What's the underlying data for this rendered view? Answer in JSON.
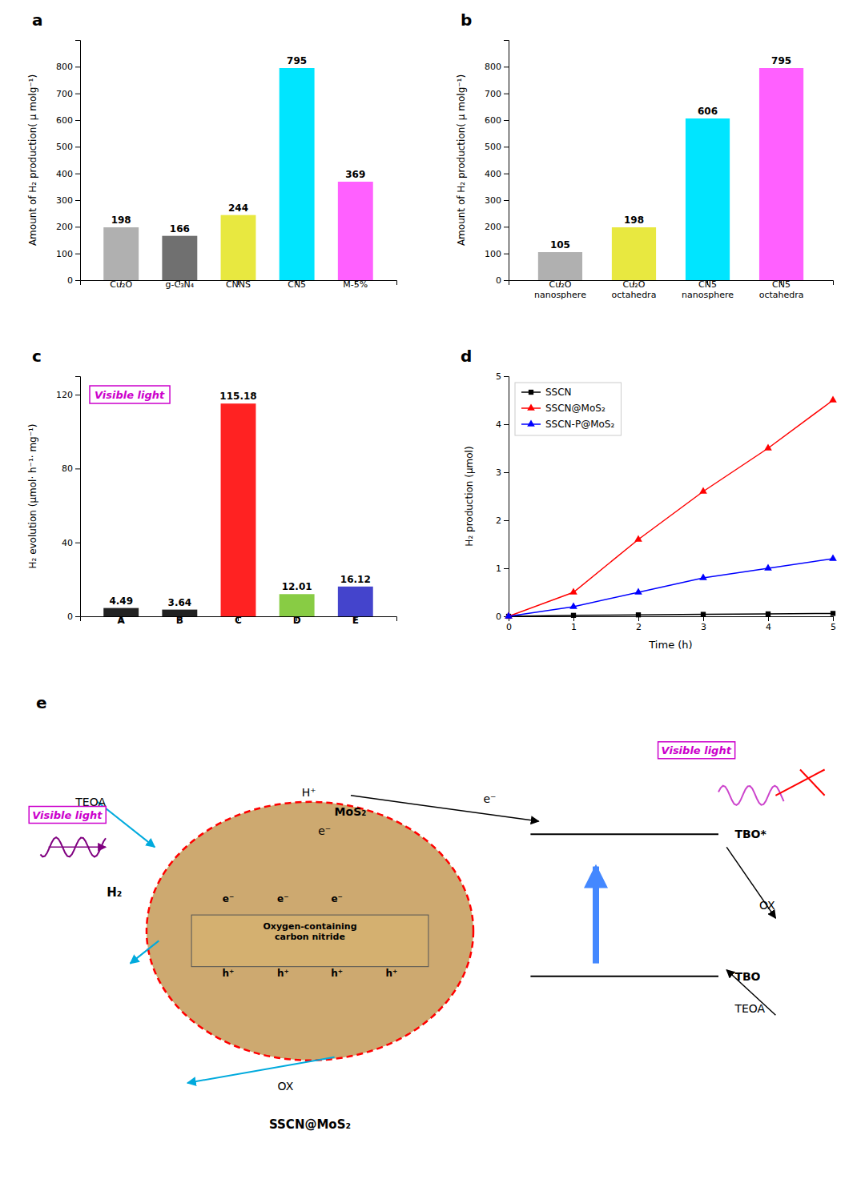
{
  "chart_data": [
    {
      "type": "bar",
      "title": "a",
      "categories": [
        "Cu₂O",
        "g-C₃N₄",
        "CNNS",
        "CN5",
        "M-5%"
      ],
      "values": [
        198,
        166,
        244,
        795,
        369
      ],
      "colors": [
        "#b0b0b0",
        "#707070",
        "#e8e840",
        "#00e5ff",
        "#ff60ff"
      ],
      "ylabel": "Amount of H₂ production( μ molg⁻¹)",
      "ylim": [
        0,
        900
      ],
      "yticks": [
        0,
        100,
        200,
        300,
        400,
        500,
        600,
        700,
        800
      ],
      "data_labels": true
    },
    {
      "type": "bar",
      "title": "b",
      "categories": [
        "Cu₂O\nnanosphere",
        "Cu₂O\noctahedra",
        "CN5\nnanosphere",
        "CN5\noctahedra"
      ],
      "values": [
        105,
        198,
        606,
        795
      ],
      "colors": [
        "#b0b0b0",
        "#e8e840",
        "#00e5ff",
        "#ff60ff"
      ],
      "ylabel": "Amount of H₂ production( μ molg⁻¹)",
      "ylim": [
        0,
        900
      ],
      "yticks": [
        0,
        100,
        200,
        300,
        400,
        500,
        600,
        700,
        800
      ],
      "data_labels": true
    },
    {
      "type": "bar",
      "title": "c",
      "categories": [
        "A",
        "B",
        "C",
        "D",
        "E"
      ],
      "values": [
        4.49,
        3.64,
        115.18,
        12.01,
        16.12
      ],
      "colors": [
        "#222222",
        "#222222",
        "#ff2222",
        "#88cc44",
        "#4444cc"
      ],
      "ylabel": "H₂ evolution (μmol· h⁻¹· mg⁻¹)",
      "ylim": [
        0,
        130
      ],
      "yticks": [
        0,
        40,
        80,
        120
      ],
      "data_labels": true,
      "annotations": [
        "Visible light"
      ]
    },
    {
      "type": "line",
      "title": "d",
      "x": [
        0,
        1,
        2,
        3,
        4,
        5
      ],
      "xlim": [
        0,
        5
      ],
      "xticks": [
        0,
        1,
        2,
        3,
        4,
        5
      ],
      "series": [
        {
          "name": "SSCN",
          "color": "black",
          "marker": "square",
          "values": [
            0,
            0.02,
            0.03,
            0.04,
            0.05,
            0.06
          ]
        },
        {
          "name": "SSCN@MoS₂",
          "color": "red",
          "marker": "triangle",
          "values": [
            0,
            0.5,
            1.6,
            2.6,
            3.5,
            4.5
          ]
        },
        {
          "name": "SSCN-P@MoS₂",
          "color": "blue",
          "marker": "triangle",
          "values": [
            0,
            0.2,
            0.5,
            0.8,
            1.0,
            1.2
          ]
        }
      ],
      "xlabel": "Time (h)",
      "ylabel": "H₂ production (μmol)",
      "ylim": [
        0,
        5
      ],
      "yticks": [
        0,
        1,
        2,
        3,
        4,
        5
      ],
      "legend": "upper left"
    },
    {
      "type": "diagram",
      "title": "e",
      "annotations": [
        "Oxygen-containing\ncarbon nitride",
        "h⁺",
        "h⁺",
        "h⁺",
        "h⁺",
        "e⁻",
        "e⁻",
        "e⁻",
        "MoS₂",
        "e⁻",
        "H⁺",
        "H₂",
        "TEOA",
        "OX",
        "Visible light",
        "e⁻",
        "TBO*",
        "TBO",
        "TEOA",
        "OX",
        "Visible light",
        "SSCN@MoS₂"
      ]
    }
  ]
}
